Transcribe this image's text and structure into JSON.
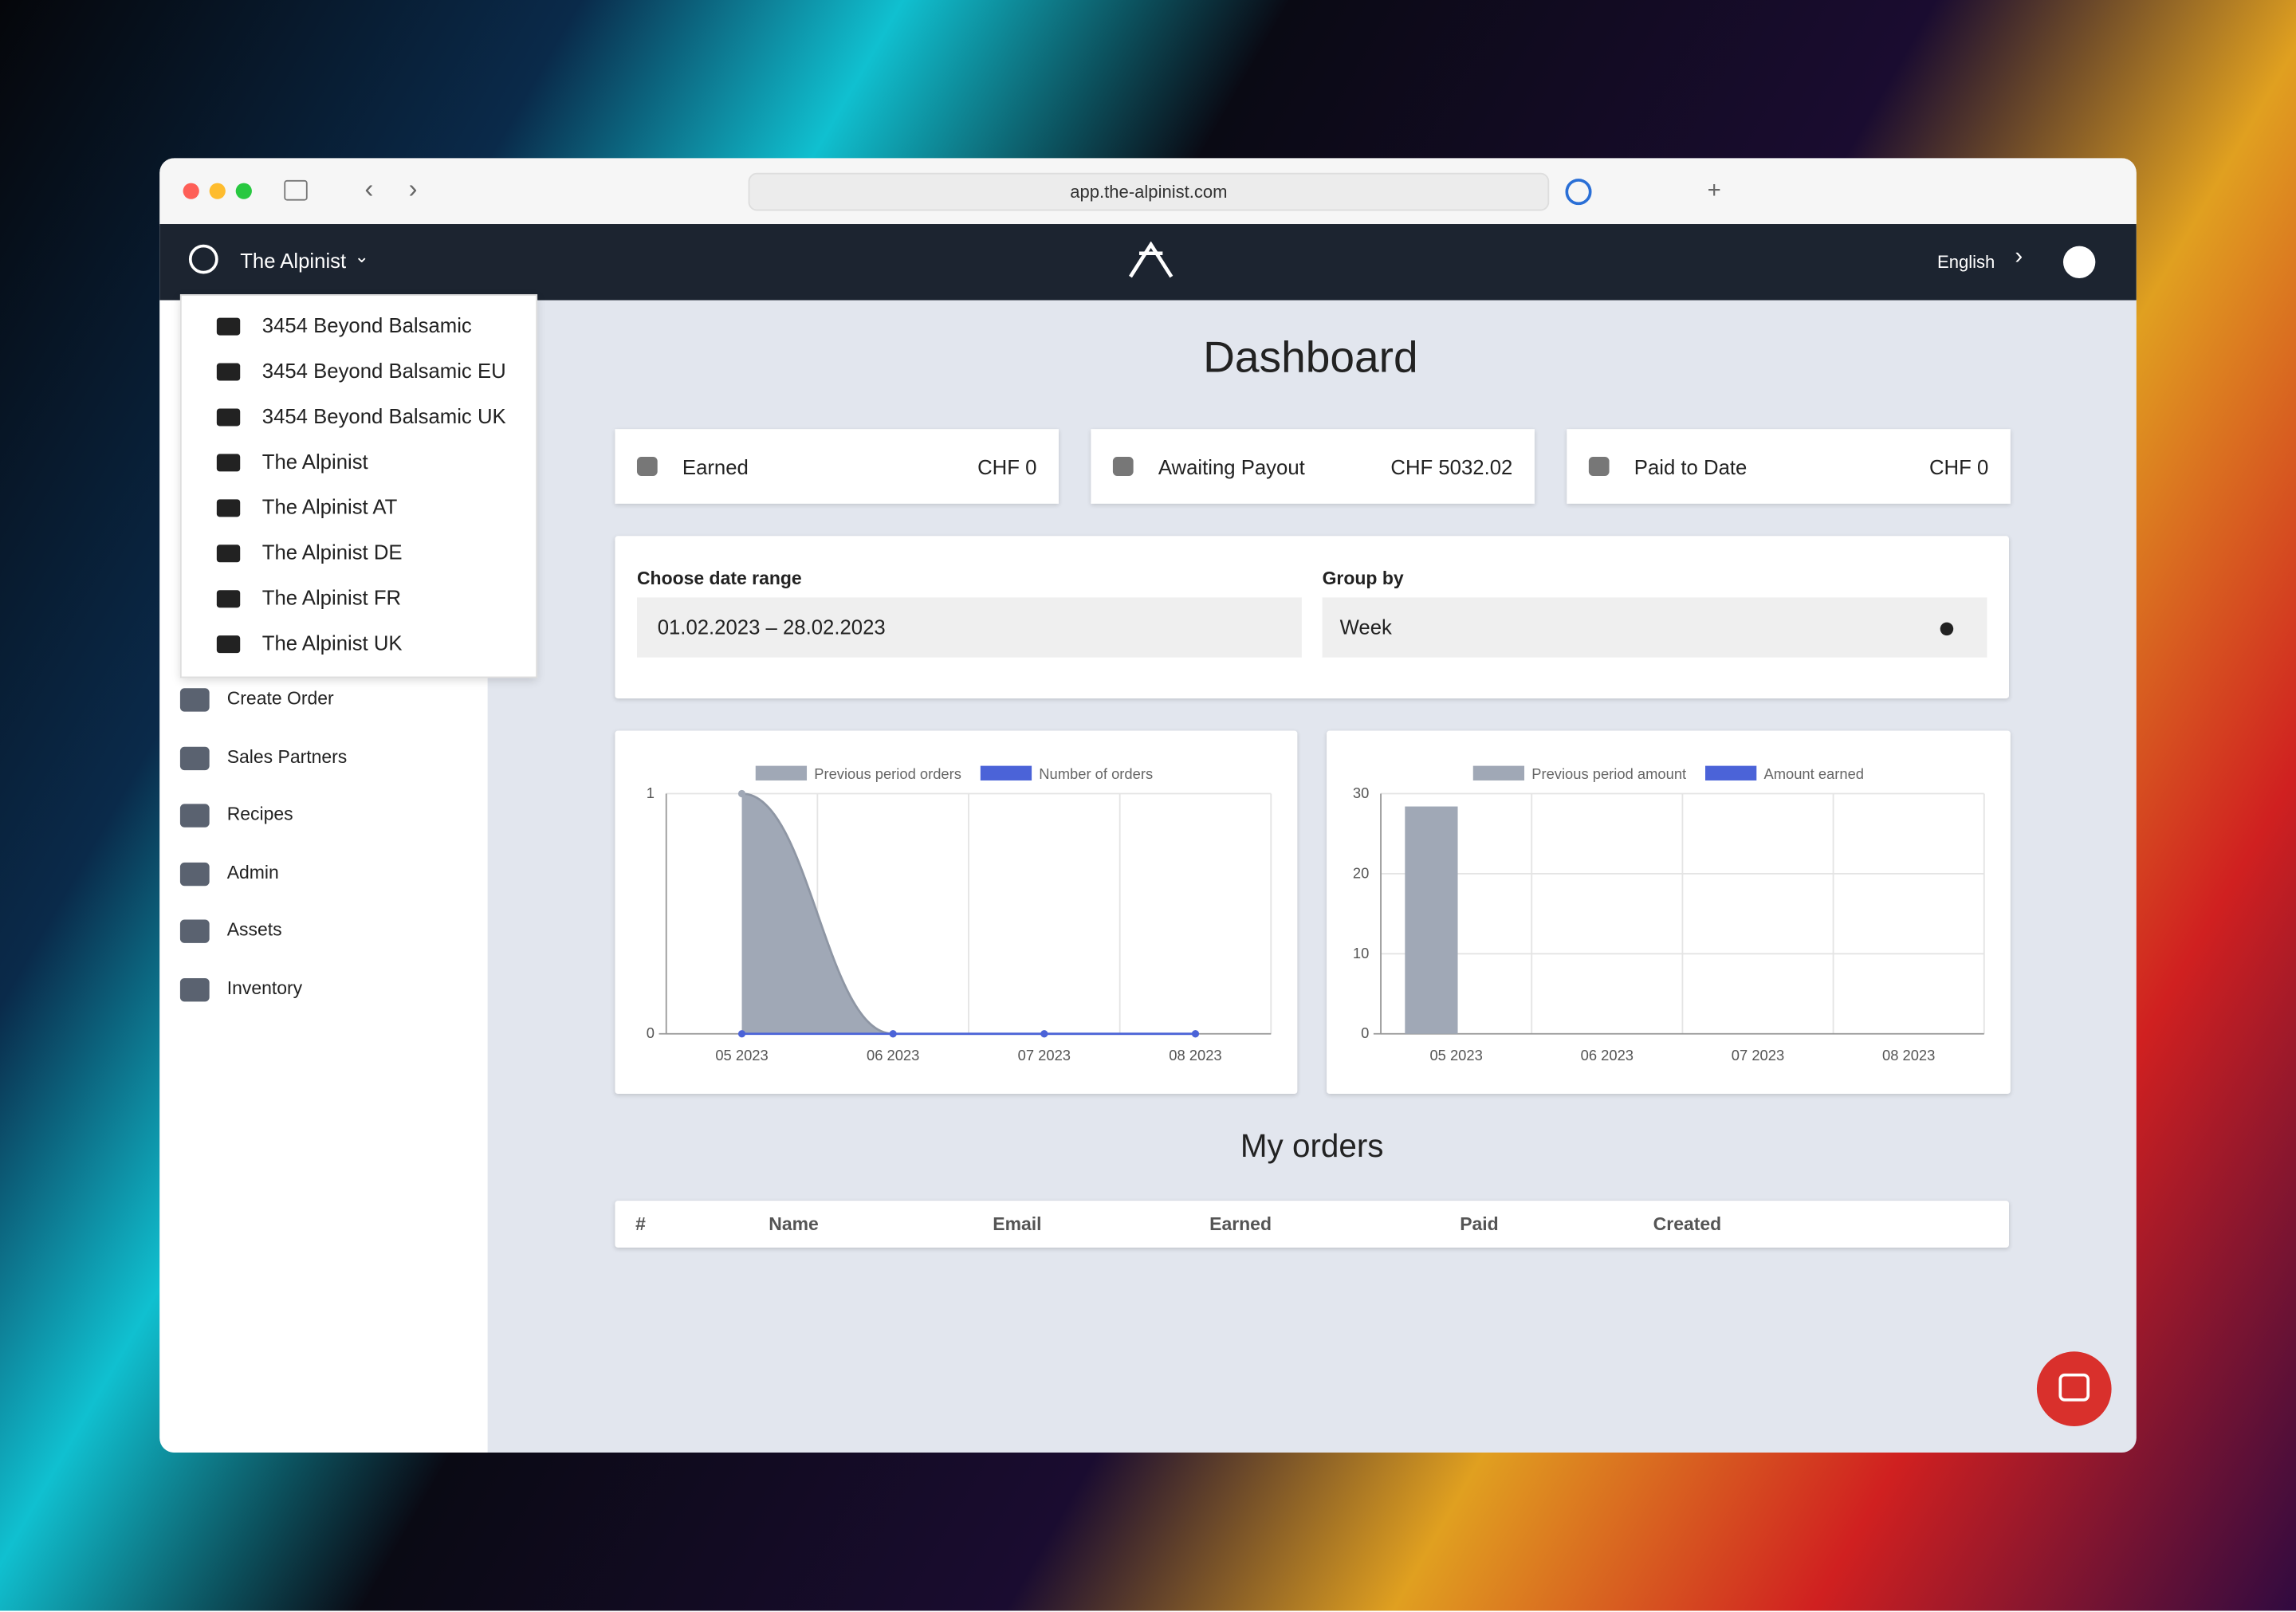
{
  "browser": {
    "url": "app.the-alpinist.com"
  },
  "header": {
    "store": "The Alpinist",
    "language": "English"
  },
  "store_menu": [
    "3454 Beyond Balsamic",
    "3454 Beyond Balsamic EU",
    "3454 Beyond Balsamic UK",
    "The Alpinist",
    "The Alpinist AT",
    "The Alpinist DE",
    "The Alpinist FR",
    "The Alpinist UK"
  ],
  "sidebar": [
    "Create Order",
    "Sales Partners",
    "Recipes",
    "Admin",
    "Assets",
    "Inventory"
  ],
  "dashboard": {
    "title": "Dashboard",
    "cards": [
      {
        "label": "Earned",
        "value": "CHF 0"
      },
      {
        "label": "Awaiting Payout",
        "value": "CHF 5032.02"
      },
      {
        "label": "Paid to Date",
        "value": "CHF 0"
      }
    ],
    "filters": {
      "date_label": "Choose date range",
      "date_value": "01.02.2023 – 28.02.2023",
      "group_label": "Group by",
      "group_value": "Week"
    },
    "orders_title": "My orders",
    "orders_columns": [
      "#",
      "Name",
      "Email",
      "Earned",
      "Paid",
      "Created"
    ]
  },
  "charts": [
    {
      "type": "line",
      "categories": [
        "05 2023",
        "06 2023",
        "07 2023",
        "08 2023"
      ],
      "series": [
        {
          "name": "Previous period orders",
          "color": "#a0a8b6",
          "values": [
            1,
            0,
            0,
            0
          ]
        },
        {
          "name": "Number of orders",
          "color": "#4b63d8",
          "values": [
            0,
            0,
            0,
            0
          ]
        }
      ],
      "ylim": [
        0,
        1
      ],
      "yticks": [
        0,
        1
      ],
      "grid": true
    },
    {
      "type": "bar",
      "categories": [
        "05 2023",
        "06 2023",
        "07 2023",
        "08 2023"
      ],
      "series": [
        {
          "name": "Previous period amount",
          "color": "#a0a8b6",
          "values": [
            28.4,
            0,
            0,
            0
          ]
        },
        {
          "name": "Amount earned",
          "color": "#4b63d8",
          "values": [
            0,
            0,
            0,
            0
          ]
        }
      ],
      "ylim": [
        0,
        30
      ],
      "yticks": [
        0,
        10,
        20,
        30
      ],
      "grid": true
    }
  ]
}
